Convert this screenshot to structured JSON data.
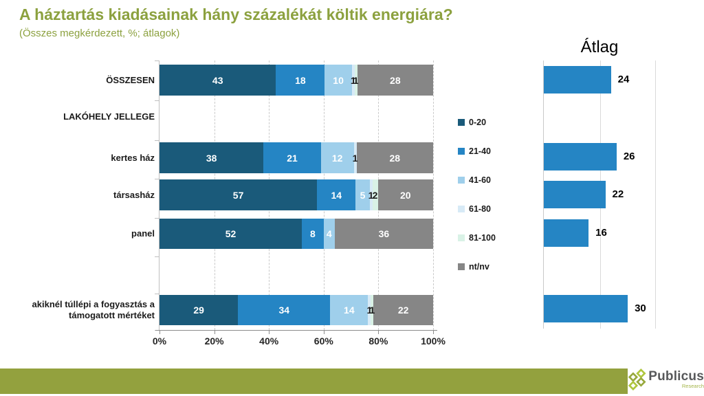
{
  "page": {
    "title": "A háztartás kiadásainak hány százalékát költik energiára?",
    "subtitle": "(Összes megkérdezett, %; átlagok)"
  },
  "colors": {
    "title_green": "#8CA13F",
    "footer_green": "#93A13E",
    "avg_bar_blue": "#2585C4",
    "segment_colors": [
      "#1A5A7A",
      "#2585C4",
      "#9FCFEB",
      "#D7EAF6",
      "#D9F2E6",
      "#868686"
    ]
  },
  "legend": {
    "items": [
      {
        "label": "0-20",
        "color": "#1A5A7A"
      },
      {
        "label": "21-40",
        "color": "#2585C4"
      },
      {
        "label": "41-60",
        "color": "#9FCFEB"
      },
      {
        "label": "61-80",
        "color": "#D7EAF6"
      },
      {
        "label": "81-100",
        "color": "#D9F2E6"
      },
      {
        "label": "nt/nv",
        "color": "#868686"
      }
    ]
  },
  "chart_data": [
    {
      "type": "bar",
      "stacked": true,
      "orientation": "horizontal",
      "title": "A háztartás kiadásainak hány százalékát költik energiára?",
      "subtitle": "(Összes megkérdezett, %; átlagok)",
      "categories": [
        "ÖSSZESEN",
        "LAKÓHELY JELLEGE",
        "kertes ház",
        "társasház",
        "panel",
        "akiknél túllépi a fogyasztás a támogatott mértéket"
      ],
      "series": [
        {
          "name": "0-20",
          "color": "#1A5A7A",
          "label_color": "#FFFFFF",
          "values": [
            43,
            null,
            38,
            57,
            52,
            29
          ]
        },
        {
          "name": "21-40",
          "color": "#2585C4",
          "label_color": "#FFFFFF",
          "values": [
            18,
            null,
            21,
            14,
            8,
            34
          ]
        },
        {
          "name": "41-60",
          "color": "#9FCFEB",
          "label_color": "#FFFFFF",
          "values": [
            10,
            null,
            12,
            5,
            4,
            14
          ]
        },
        {
          "name": "61-80",
          "color": "#D7EAF6",
          "label_color": "#1A1A1A",
          "values": [
            1,
            null,
            1,
            1,
            0,
            1
          ]
        },
        {
          "name": "81-100",
          "color": "#D9F2E6",
          "label_color": "#1A1A1A",
          "values": [
            1,
            null,
            0,
            2,
            0,
            1
          ]
        },
        {
          "name": "nt/nv",
          "color": "#868686",
          "label_color": "#FFFFFF",
          "values": [
            28,
            null,
            28,
            20,
            36,
            22
          ]
        }
      ],
      "xlim": [
        0,
        100
      ],
      "xticks": [
        "0%",
        "20%",
        "40%",
        "60%",
        "80%",
        "100%"
      ],
      "grid": "dashed-vertical",
      "legend_position": "right-of-plot"
    },
    {
      "type": "bar",
      "orientation": "horizontal",
      "title": "Átlag",
      "categories": [
        "ÖSSZESEN",
        "LAKÓHELY JELLEGE",
        "kertes ház",
        "társasház",
        "panel",
        "akiknél túllépi a fogyasztás a támogatott mértéket"
      ],
      "values": [
        24,
        null,
        26,
        22,
        16,
        30
      ],
      "xlim": [
        0,
        40
      ],
      "grid": "solid-vertical",
      "bar_color": "#2585C4"
    }
  ],
  "footer": {
    "brand": "Publicus",
    "brand_sub": "Research"
  }
}
